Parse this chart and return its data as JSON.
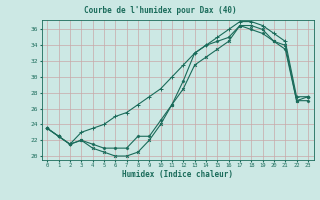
{
  "title": "Courbe de l'humidex pour Dax (40)",
  "xlabel": "Humidex (Indice chaleur)",
  "bg_color": "#cce8e4",
  "line_color": "#1a6b5a",
  "grid_color": "#b8d8d4",
  "xlim": [
    -0.5,
    23.5
  ],
  "ylim": [
    19.5,
    37.2
  ],
  "xticks": [
    0,
    1,
    2,
    3,
    4,
    5,
    6,
    7,
    8,
    9,
    10,
    11,
    12,
    13,
    14,
    15,
    16,
    17,
    18,
    19,
    20,
    21,
    22,
    23
  ],
  "yticks": [
    20,
    22,
    24,
    26,
    28,
    30,
    32,
    34,
    36
  ],
  "line_bottom_x": [
    0,
    1,
    2,
    3,
    4,
    5,
    6,
    7,
    8,
    9,
    10,
    11,
    12,
    13,
    14,
    15,
    16,
    17,
    18,
    19,
    20,
    21,
    22,
    23
  ],
  "line_bottom_y": [
    23.5,
    22.5,
    21.5,
    22.0,
    21.0,
    20.5,
    20.0,
    20.0,
    20.5,
    22.0,
    24.0,
    26.5,
    28.5,
    31.5,
    32.5,
    33.5,
    34.5,
    36.5,
    36.5,
    36.0,
    34.5,
    34.0,
    27.0,
    27.5
  ],
  "line_top_x": [
    0,
    1,
    2,
    3,
    4,
    5,
    6,
    7,
    8,
    9,
    10,
    11,
    12,
    13,
    14,
    15,
    16,
    17,
    18,
    19,
    20,
    21,
    22,
    23
  ],
  "line_top_y": [
    23.5,
    22.5,
    21.5,
    23.0,
    23.5,
    24.0,
    25.0,
    25.5,
    26.5,
    27.5,
    28.5,
    30.0,
    31.5,
    33.0,
    34.0,
    35.0,
    36.0,
    37.0,
    37.0,
    36.5,
    35.5,
    34.5,
    27.5,
    27.5
  ],
  "line_mid_x": [
    0,
    1,
    2,
    3,
    4,
    5,
    6,
    7,
    8,
    9,
    10,
    11,
    12,
    13,
    14,
    15,
    16,
    17,
    18,
    19,
    20,
    21,
    22,
    23
  ],
  "line_mid_y": [
    23.5,
    22.5,
    21.5,
    22.0,
    21.5,
    21.0,
    21.0,
    21.0,
    22.5,
    22.5,
    24.5,
    26.5,
    29.5,
    33.0,
    34.0,
    34.5,
    35.0,
    36.5,
    36.0,
    35.5,
    34.5,
    33.5,
    27.0,
    27.0
  ]
}
